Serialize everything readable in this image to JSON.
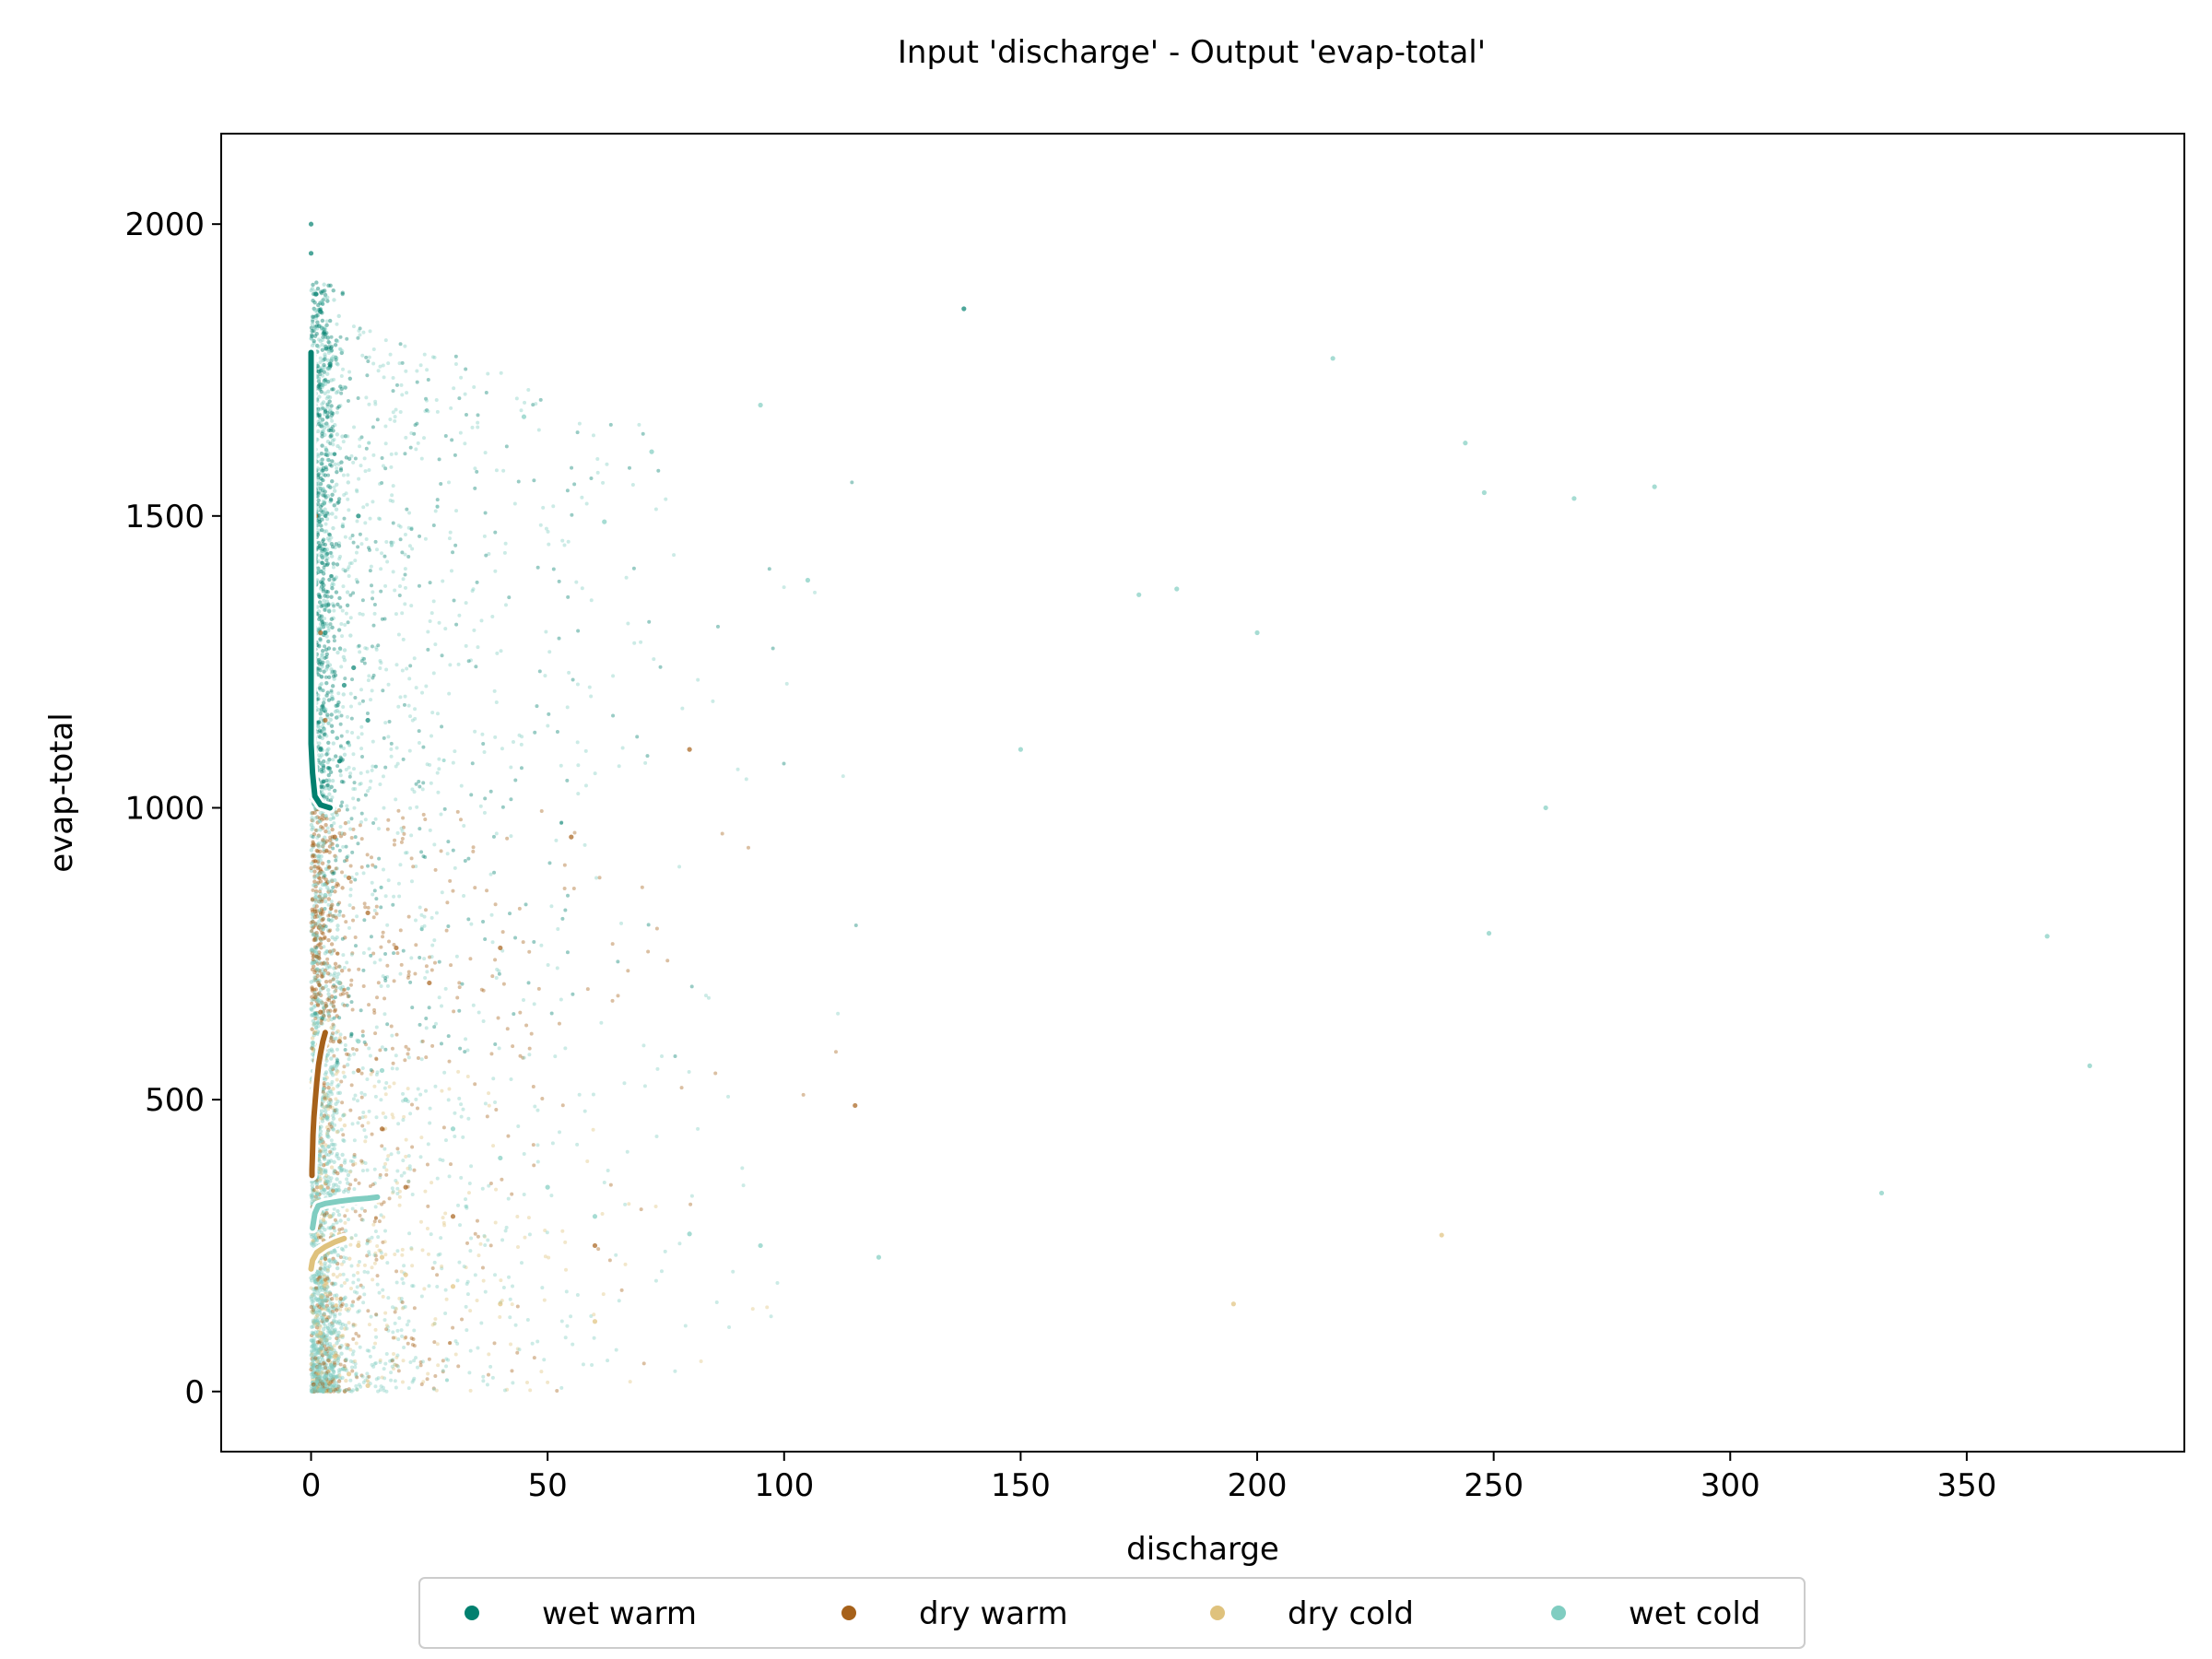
{
  "chart_data": {
    "type": "scatter",
    "title": "Input 'discharge' - Output 'evap-total'",
    "xlabel": "discharge",
    "ylabel": "evap-total",
    "xlim": [
      -19,
      396
    ],
    "ylim": [
      -103,
      2155
    ],
    "x_ticks": [
      0,
      50,
      100,
      150,
      200,
      250,
      300,
      350
    ],
    "y_ticks": [
      0,
      500,
      1000,
      1500,
      2000
    ],
    "grid": false,
    "legend_position": "bottom-center",
    "series": [
      {
        "name": "wet warm",
        "color": "#01806f",
        "points": [
          [
            1,
            1880
          ],
          [
            0,
            1950
          ],
          [
            2,
            1850
          ],
          [
            0,
            2000
          ],
          [
            138,
            1855
          ],
          [
            4,
            1760
          ],
          [
            10,
            1500
          ],
          [
            0.5,
            1400
          ],
          [
            3,
            1300
          ],
          [
            7,
            1210
          ],
          [
            12,
            1150
          ],
          [
            2,
            1100
          ],
          [
            0.5,
            1050
          ],
          [
            6,
            1080
          ],
          [
            9,
            1240
          ]
        ],
        "trend": [
          [
            0,
            1780
          ],
          [
            0,
            1700
          ],
          [
            0,
            1600
          ],
          [
            0,
            1500
          ],
          [
            0,
            1400
          ],
          [
            0,
            1300
          ],
          [
            0,
            1200
          ],
          [
            0,
            1110
          ],
          [
            0.3,
            1060
          ],
          [
            0.8,
            1020
          ],
          [
            2,
            1005
          ],
          [
            4,
            1000
          ]
        ]
      },
      {
        "name": "dry warm",
        "color": "#a6611a",
        "points": [
          [
            0,
            1600
          ],
          [
            1,
            1500
          ],
          [
            2,
            1300
          ],
          [
            3,
            1150
          ],
          [
            5,
            950
          ],
          [
            8,
            880
          ],
          [
            12,
            820
          ],
          [
            18,
            760
          ],
          [
            25,
            700
          ],
          [
            40,
            760
          ],
          [
            55,
            950
          ],
          [
            80,
            1100
          ],
          [
            2,
            650
          ],
          [
            6,
            600
          ],
          [
            10,
            550
          ],
          [
            15,
            450
          ],
          [
            20,
            350
          ],
          [
            30,
            300
          ],
          [
            60,
            250
          ],
          [
            115,
            490
          ]
        ],
        "trend": [
          [
            3,
            615
          ],
          [
            2.5,
            600
          ],
          [
            2,
            580
          ],
          [
            1.6,
            560
          ],
          [
            1.2,
            530
          ],
          [
            0.9,
            500
          ],
          [
            0.6,
            470
          ],
          [
            0.4,
            440
          ],
          [
            0.3,
            410
          ],
          [
            0.2,
            380
          ],
          [
            0.2,
            370
          ]
        ]
      },
      {
        "name": "dry cold",
        "color": "#dfc27d",
        "points": [
          [
            1,
            400
          ],
          [
            2,
            350
          ],
          [
            4,
            300
          ],
          [
            6,
            270
          ],
          [
            10,
            250
          ],
          [
            15,
            230
          ],
          [
            20,
            200
          ],
          [
            30,
            180
          ],
          [
            40,
            150
          ],
          [
            60,
            120
          ],
          [
            2,
            100
          ],
          [
            5,
            60
          ],
          [
            8,
            30
          ],
          [
            12,
            10
          ],
          [
            239,
            268
          ],
          [
            195,
            150
          ]
        ],
        "trend": [
          [
            0,
            210
          ],
          [
            0.3,
            225
          ],
          [
            1.2,
            238
          ],
          [
            3,
            248
          ],
          [
            5,
            256
          ],
          [
            7,
            262
          ]
        ]
      },
      {
        "name": "wet cold",
        "color": "#80cdc1",
        "points": [
          [
            1,
            1000
          ],
          [
            3,
            850
          ],
          [
            6,
            700
          ],
          [
            10,
            600
          ],
          [
            15,
            550
          ],
          [
            20,
            500
          ],
          [
            30,
            450
          ],
          [
            40,
            400
          ],
          [
            50,
            350
          ],
          [
            60,
            300
          ],
          [
            80,
            270
          ],
          [
            95,
            250
          ],
          [
            120,
            230
          ],
          [
            150,
            1100
          ],
          [
            200,
            1300
          ],
          [
            216,
            1770
          ],
          [
            244,
            1625
          ],
          [
            248,
            1540
          ],
          [
            267,
            1530
          ],
          [
            284,
            1550
          ],
          [
            261,
            1000
          ],
          [
            249,
            785
          ],
          [
            367,
            780
          ],
          [
            376,
            558
          ],
          [
            332,
            340
          ],
          [
            175,
            1365
          ],
          [
            183,
            1375
          ],
          [
            105,
            1390
          ],
          [
            72,
            1610
          ],
          [
            95,
            1690
          ],
          [
            62,
            1490
          ],
          [
            45,
            1670
          ]
        ],
        "trend": [
          [
            0.3,
            280
          ],
          [
            0.8,
            305
          ],
          [
            1.5,
            318
          ],
          [
            3,
            322
          ],
          [
            6,
            326
          ],
          [
            9,
            329
          ],
          [
            12,
            331
          ],
          [
            14,
            333
          ]
        ]
      }
    ]
  }
}
